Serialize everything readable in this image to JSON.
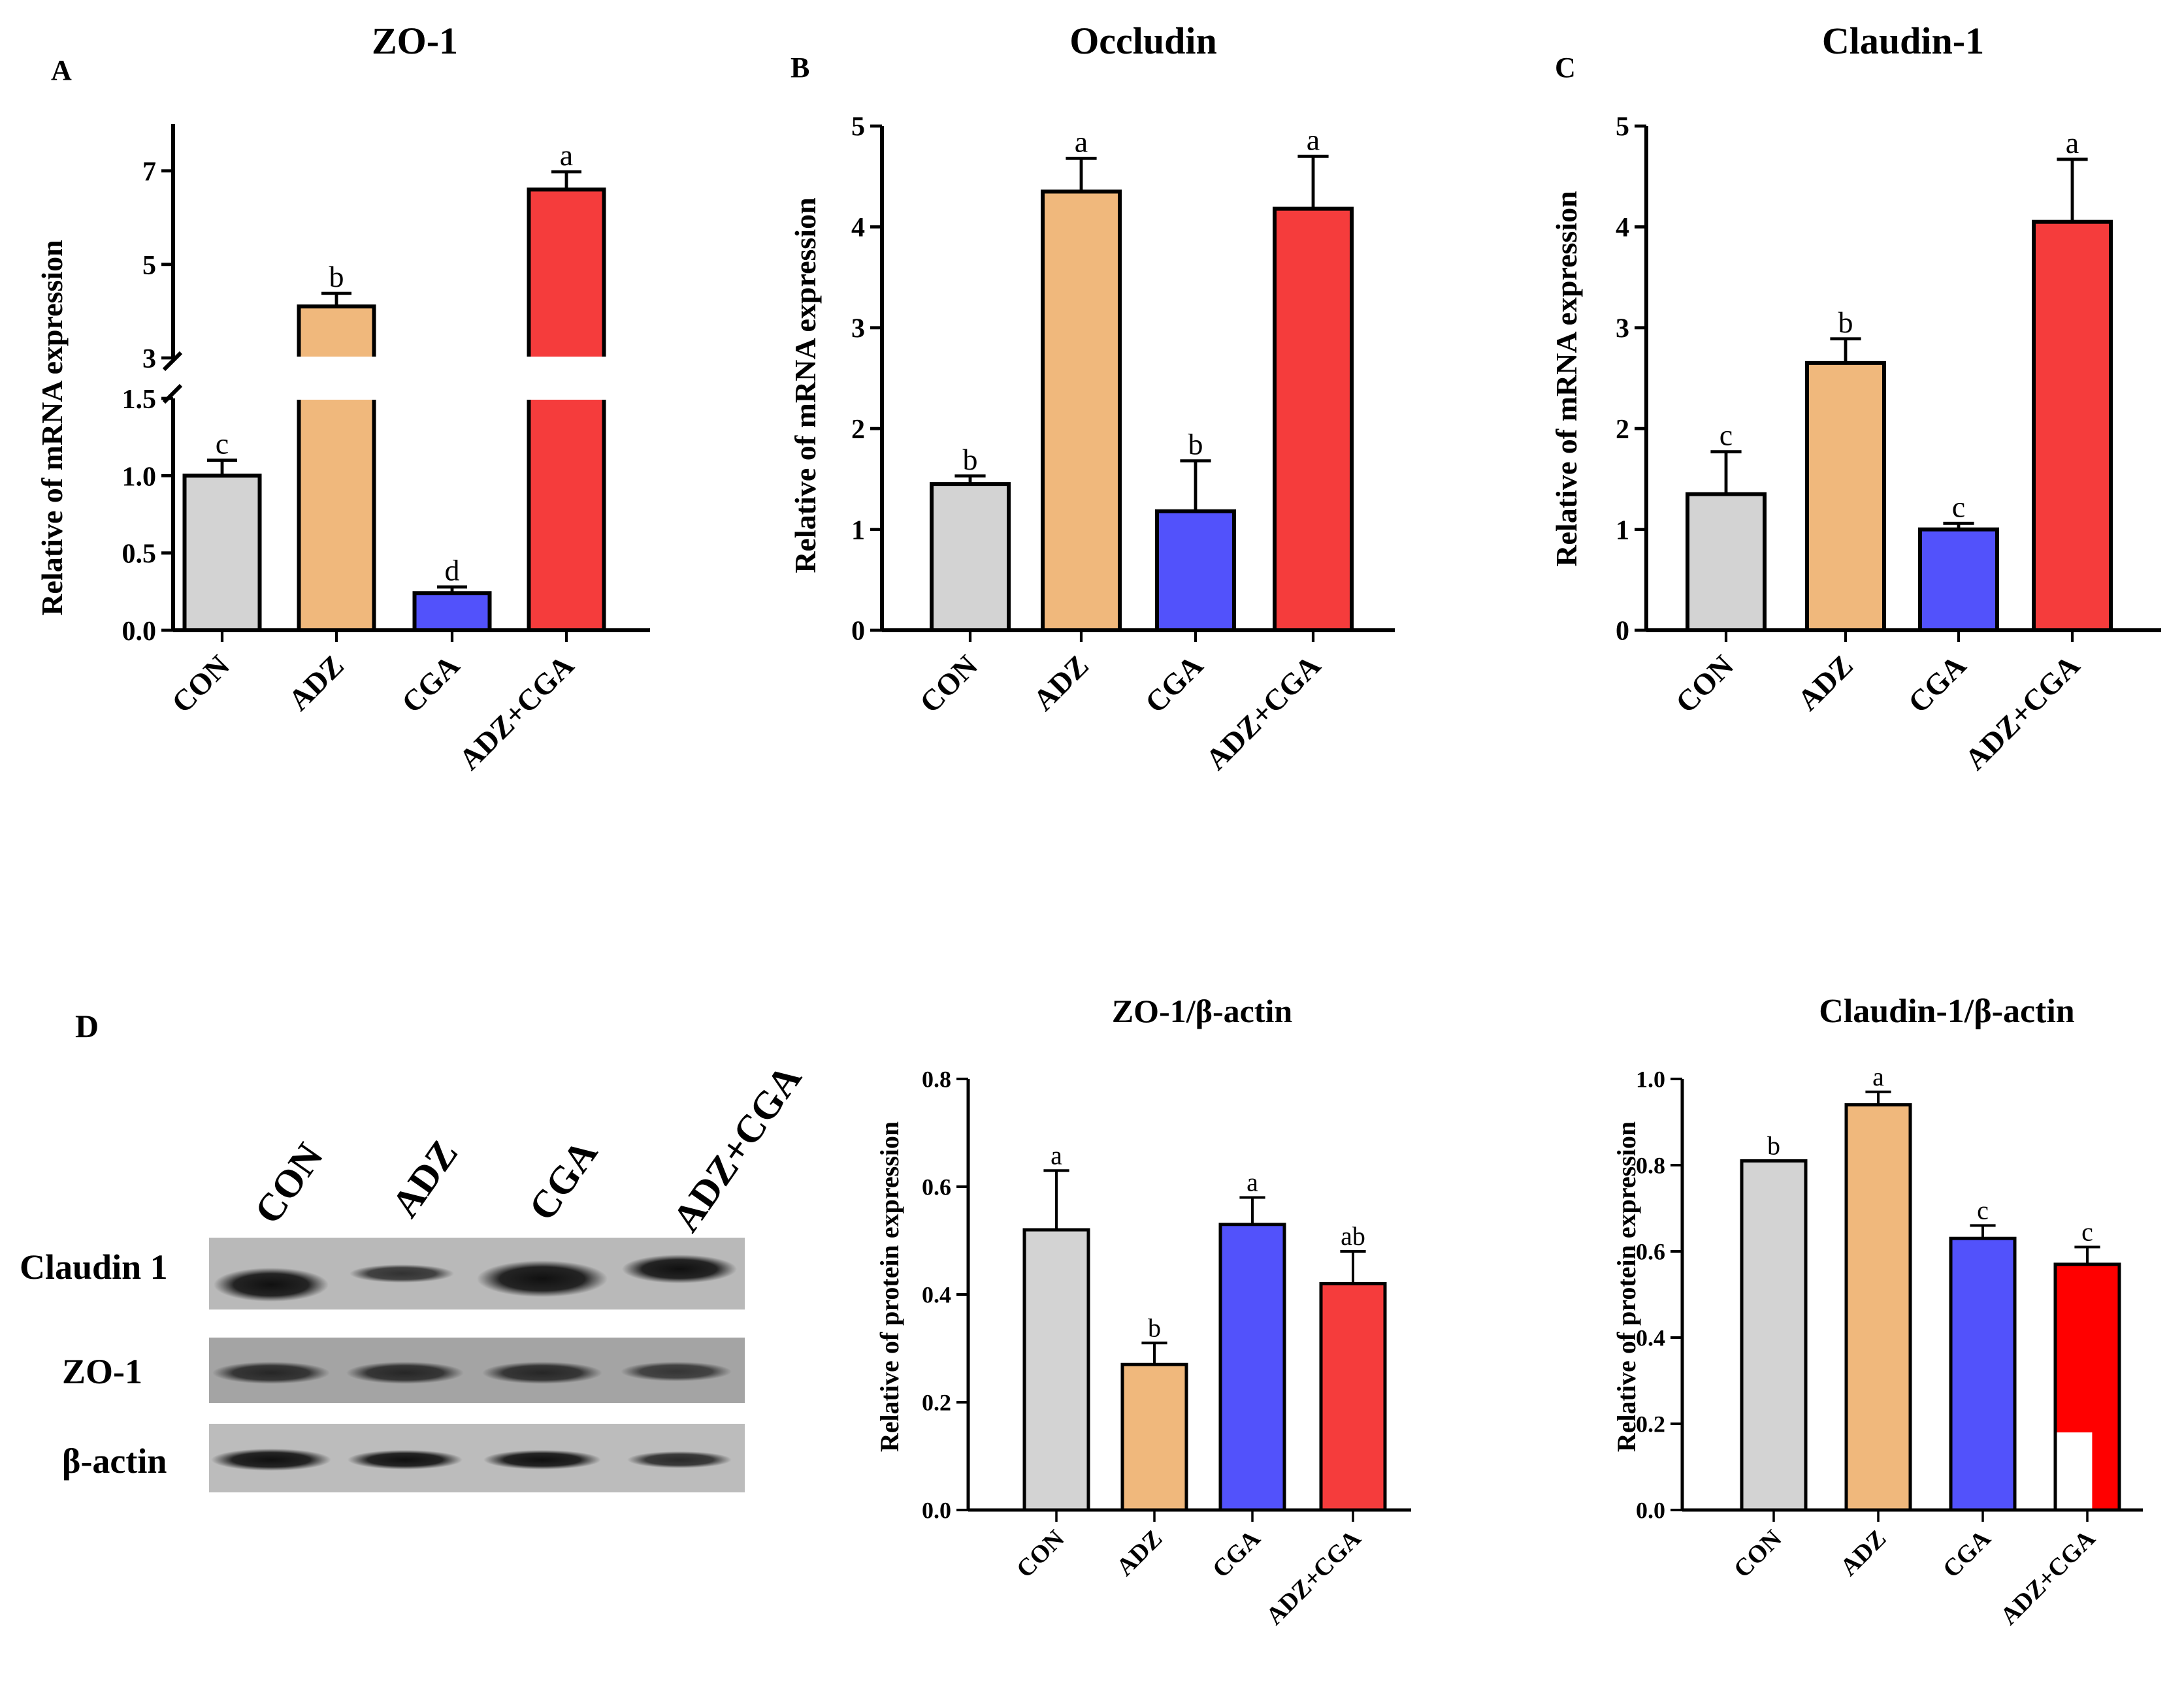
{
  "panel_labels": {
    "a": "A",
    "b": "B",
    "c": "C",
    "d": "D"
  },
  "western_blot": {
    "lane_labels": [
      "CON",
      "ADZ",
      "CGA",
      "ADZ+CGA"
    ],
    "row_labels": [
      "Claudin 1",
      "ZO-1",
      "β-actin"
    ]
  },
  "chart_data": [
    {
      "id": "zo1-mrna",
      "type": "bar",
      "title": "ZO-1",
      "xlabel": "",
      "ylabel": "Relative of mRNA expression",
      "categories": [
        "CON",
        "ADZ",
        "CGA",
        "ADZ+CGA"
      ],
      "values": [
        1.0,
        4.1,
        0.24,
        6.6
      ],
      "errors": [
        0.1,
        0.28,
        0.04,
        0.38
      ],
      "letters": [
        "c",
        "b",
        "d",
        "a"
      ],
      "colors": [
        "#d3d3d3",
        "#f0b87c",
        "#5252fb",
        "#f53c3c"
      ],
      "broken_axis": true,
      "lower_ylim": [
        0,
        1.5
      ],
      "upper_ylim": [
        3,
        8
      ],
      "lower_ticks": [
        0.0,
        0.5,
        1.0,
        1.5
      ],
      "lower_tick_labels": [
        "0.0",
        "0.5",
        "1.0",
        "1.5"
      ],
      "upper_ticks": [
        3,
        5,
        7
      ],
      "upper_tick_labels": [
        "3",
        "5",
        "7"
      ]
    },
    {
      "id": "occludin-mrna",
      "type": "bar",
      "title": "Occludin",
      "xlabel": "",
      "ylabel": "Relative of mRNA expression",
      "categories": [
        "CON",
        "ADZ",
        "CGA",
        "ADZ+CGA"
      ],
      "values": [
        1.45,
        4.35,
        1.18,
        4.18
      ],
      "errors": [
        0.08,
        0.33,
        0.5,
        0.52
      ],
      "letters": [
        "b",
        "a",
        "b",
        "a"
      ],
      "colors": [
        "#d3d3d3",
        "#f0b87c",
        "#5252fb",
        "#f53c3c"
      ],
      "ylim": [
        0,
        5
      ],
      "yticks": [
        0,
        1,
        2,
        3,
        4,
        5
      ],
      "ytick_labels": [
        "0",
        "1",
        "2",
        "3",
        "4",
        "5"
      ]
    },
    {
      "id": "claudin1-mrna",
      "type": "bar",
      "title": "Claudin-1",
      "xlabel": "",
      "ylabel": "Relative of mRNA expression",
      "categories": [
        "CON",
        "ADZ",
        "CGA",
        "ADZ+CGA"
      ],
      "values": [
        1.35,
        2.65,
        1.0,
        4.05
      ],
      "errors": [
        0.42,
        0.24,
        0.06,
        0.62
      ],
      "letters": [
        "c",
        "b",
        "c",
        "a"
      ],
      "colors": [
        "#d3d3d3",
        "#f0b87c",
        "#5252fb",
        "#f53c3c"
      ],
      "ylim": [
        0,
        5
      ],
      "yticks": [
        0,
        1,
        2,
        3,
        4,
        5
      ],
      "ytick_labels": [
        "0",
        "1",
        "2",
        "3",
        "4",
        "5"
      ]
    },
    {
      "id": "zo1-protein",
      "type": "bar",
      "title": "ZO-1/β-actin",
      "xlabel": "",
      "ylabel": "Relative of protein expression",
      "categories": [
        "CON",
        "ADZ",
        "CGA",
        "ADZ+CGA"
      ],
      "values": [
        0.52,
        0.27,
        0.53,
        0.42
      ],
      "errors": [
        0.11,
        0.04,
        0.05,
        0.06
      ],
      "letters": [
        "a",
        "b",
        "a",
        "ab"
      ],
      "colors": [
        "#d3d3d3",
        "#f0b87c",
        "#5252fb",
        "#f53c3c"
      ],
      "ylim": [
        0,
        0.8
      ],
      "yticks": [
        0,
        0.2,
        0.4,
        0.6,
        0.8
      ],
      "ytick_labels": [
        "0.0",
        "0.2",
        "0.4",
        "0.6",
        "0.8"
      ]
    },
    {
      "id": "claudin1-protein",
      "type": "bar",
      "title": "Claudin-1/β-actin",
      "xlabel": "",
      "ylabel": "Relative of protein expression",
      "categories": [
        "CON",
        "ADZ",
        "CGA",
        "ADZ+CGA"
      ],
      "values": [
        0.81,
        0.94,
        0.63,
        0.57
      ],
      "errors": [
        0.0,
        0.03,
        0.03,
        0.04
      ],
      "letters": [
        "b",
        "a",
        "c",
        "c"
      ],
      "colors": [
        "#d3d3d3",
        "#f0b87c",
        "#5252fb",
        "#ff0000"
      ],
      "ylim": [
        0,
        1.0
      ],
      "yticks": [
        0,
        0.2,
        0.4,
        0.6,
        0.8,
        1.0
      ],
      "ytick_labels": [
        "0.0",
        "0.2",
        "0.4",
        "0.6",
        "0.8",
        "1.0"
      ]
    }
  ]
}
